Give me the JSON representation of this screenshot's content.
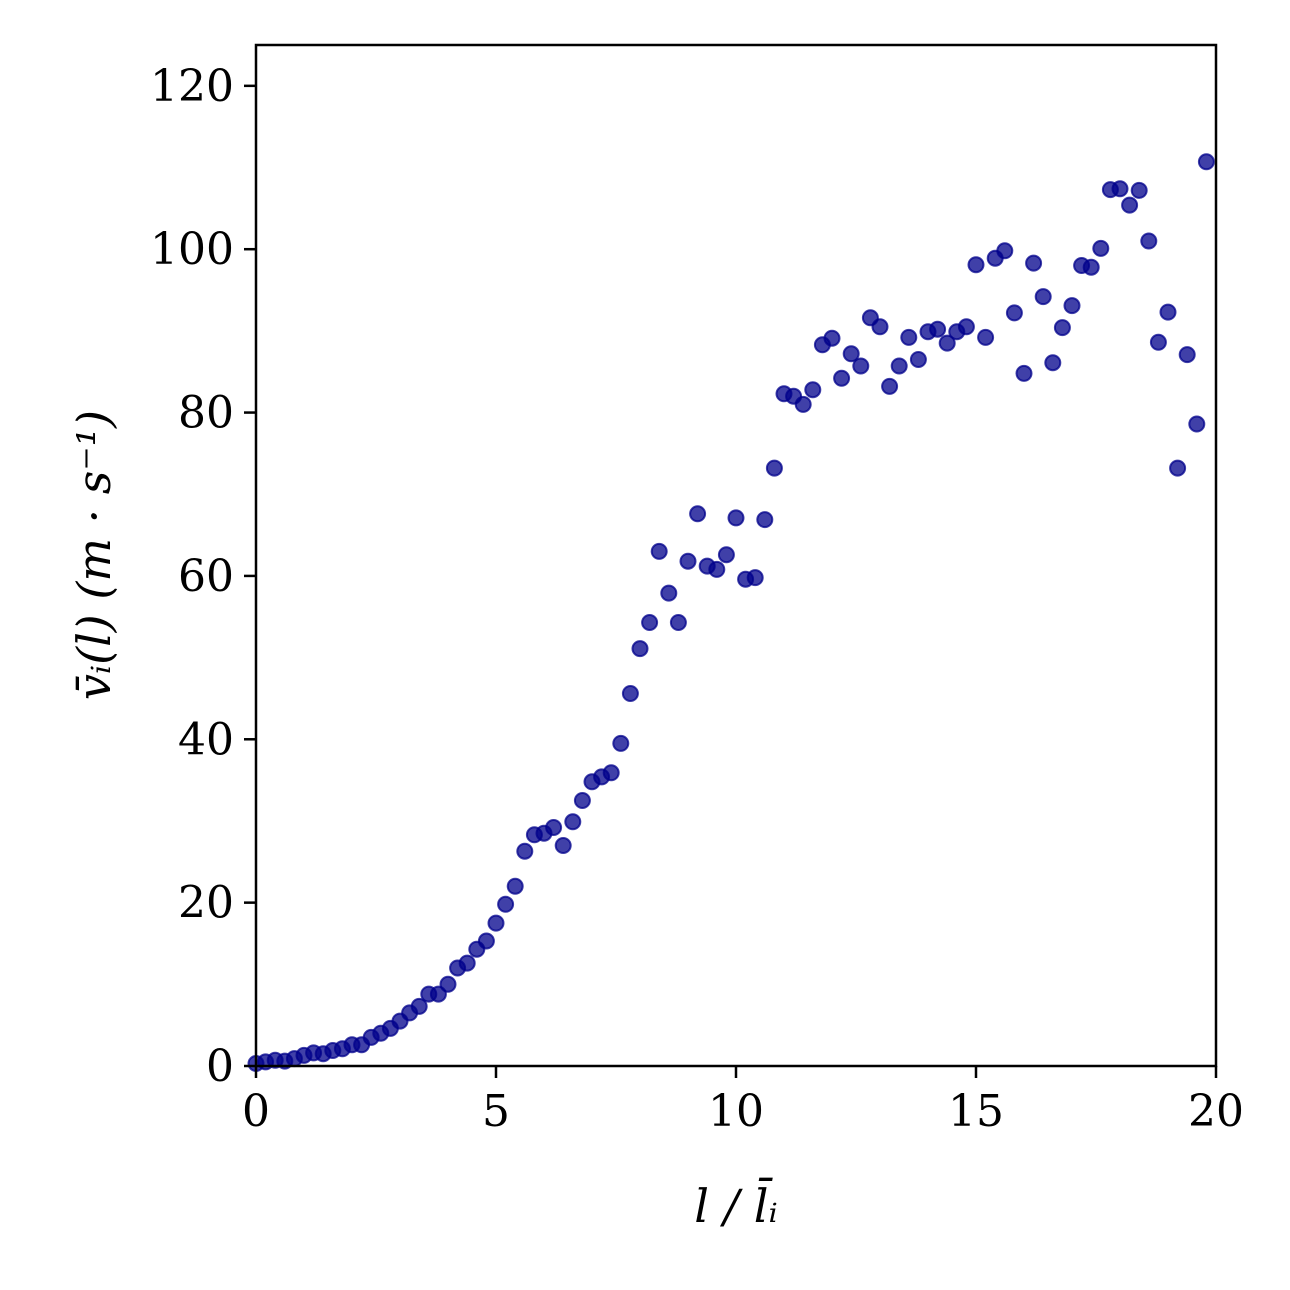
{
  "chart_data": {
    "type": "scatter",
    "xlabel": "l / l̄ᵢ",
    "ylabel": "v̄ᵢ(l) (m · s⁻¹)",
    "xlim": [
      0,
      20
    ],
    "ylim": [
      0,
      125
    ],
    "xticks": [
      0,
      5,
      10,
      15,
      20
    ],
    "yticks": [
      0,
      20,
      40,
      60,
      80,
      100,
      120
    ],
    "grid": false,
    "marker_color": "#00008b",
    "series": [
      {
        "points": [
          [
            0.0,
            0.3
          ],
          [
            0.2,
            0.5
          ],
          [
            0.4,
            0.7
          ],
          [
            0.6,
            0.6
          ],
          [
            0.8,
            0.9
          ],
          [
            1.0,
            1.3
          ],
          [
            1.2,
            1.6
          ],
          [
            1.4,
            1.5
          ],
          [
            1.6,
            1.9
          ],
          [
            1.8,
            2.1
          ],
          [
            2.0,
            2.6
          ],
          [
            2.2,
            2.6
          ],
          [
            2.4,
            3.5
          ],
          [
            2.6,
            4.0
          ],
          [
            2.8,
            4.6
          ],
          [
            3.0,
            5.5
          ],
          [
            3.2,
            6.5
          ],
          [
            3.4,
            7.3
          ],
          [
            3.6,
            8.8
          ],
          [
            3.8,
            8.8
          ],
          [
            4.0,
            10.0
          ],
          [
            4.2,
            12.0
          ],
          [
            4.4,
            12.6
          ],
          [
            4.6,
            14.3
          ],
          [
            4.8,
            15.3
          ],
          [
            5.0,
            17.5
          ],
          [
            5.2,
            19.8
          ],
          [
            5.4,
            22.0
          ],
          [
            5.6,
            26.3
          ],
          [
            5.8,
            28.3
          ],
          [
            6.0,
            28.5
          ],
          [
            6.2,
            29.2
          ],
          [
            6.4,
            27.0
          ],
          [
            6.6,
            29.9
          ],
          [
            6.8,
            32.5
          ],
          [
            7.0,
            34.8
          ],
          [
            7.2,
            35.4
          ],
          [
            7.4,
            35.9
          ],
          [
            7.6,
            39.5
          ],
          [
            7.8,
            45.6
          ],
          [
            8.0,
            51.1
          ],
          [
            8.2,
            54.3
          ],
          [
            8.4,
            63.0
          ],
          [
            8.6,
            57.9
          ],
          [
            8.8,
            54.3
          ],
          [
            9.0,
            61.8
          ],
          [
            9.2,
            67.6
          ],
          [
            9.4,
            61.2
          ],
          [
            9.6,
            60.8
          ],
          [
            9.8,
            62.6
          ],
          [
            10.0,
            67.1
          ],
          [
            10.2,
            59.6
          ],
          [
            10.4,
            59.8
          ],
          [
            10.6,
            66.9
          ],
          [
            10.8,
            73.2
          ],
          [
            11.0,
            82.3
          ],
          [
            11.2,
            82.0
          ],
          [
            11.4,
            81.0
          ],
          [
            11.6,
            82.8
          ],
          [
            11.8,
            88.3
          ],
          [
            12.0,
            89.1
          ],
          [
            12.2,
            84.2
          ],
          [
            12.4,
            87.2
          ],
          [
            12.6,
            85.7
          ],
          [
            12.8,
            91.6
          ],
          [
            13.0,
            90.5
          ],
          [
            13.2,
            83.2
          ],
          [
            13.4,
            85.7
          ],
          [
            13.6,
            89.2
          ],
          [
            13.8,
            86.5
          ],
          [
            14.0,
            89.9
          ],
          [
            14.2,
            90.2
          ],
          [
            14.4,
            88.5
          ],
          [
            14.6,
            89.9
          ],
          [
            14.8,
            90.5
          ],
          [
            15.0,
            98.1
          ],
          [
            15.2,
            89.2
          ],
          [
            15.4,
            98.9
          ],
          [
            15.6,
            99.8
          ],
          [
            15.8,
            92.2
          ],
          [
            16.0,
            84.8
          ],
          [
            16.2,
            98.3
          ],
          [
            16.4,
            94.2
          ],
          [
            16.6,
            86.1
          ],
          [
            16.8,
            90.4
          ],
          [
            17.0,
            93.1
          ],
          [
            17.2,
            98.0
          ],
          [
            17.4,
            97.8
          ],
          [
            17.6,
            100.1
          ],
          [
            17.8,
            107.3
          ],
          [
            18.0,
            107.4
          ],
          [
            18.2,
            105.4
          ],
          [
            18.4,
            107.2
          ],
          [
            18.6,
            101.0
          ],
          [
            18.8,
            88.6
          ],
          [
            19.0,
            92.3
          ],
          [
            19.2,
            73.2
          ],
          [
            19.4,
            87.1
          ],
          [
            19.6,
            78.6
          ],
          [
            19.8,
            110.7
          ]
        ]
      }
    ]
  }
}
